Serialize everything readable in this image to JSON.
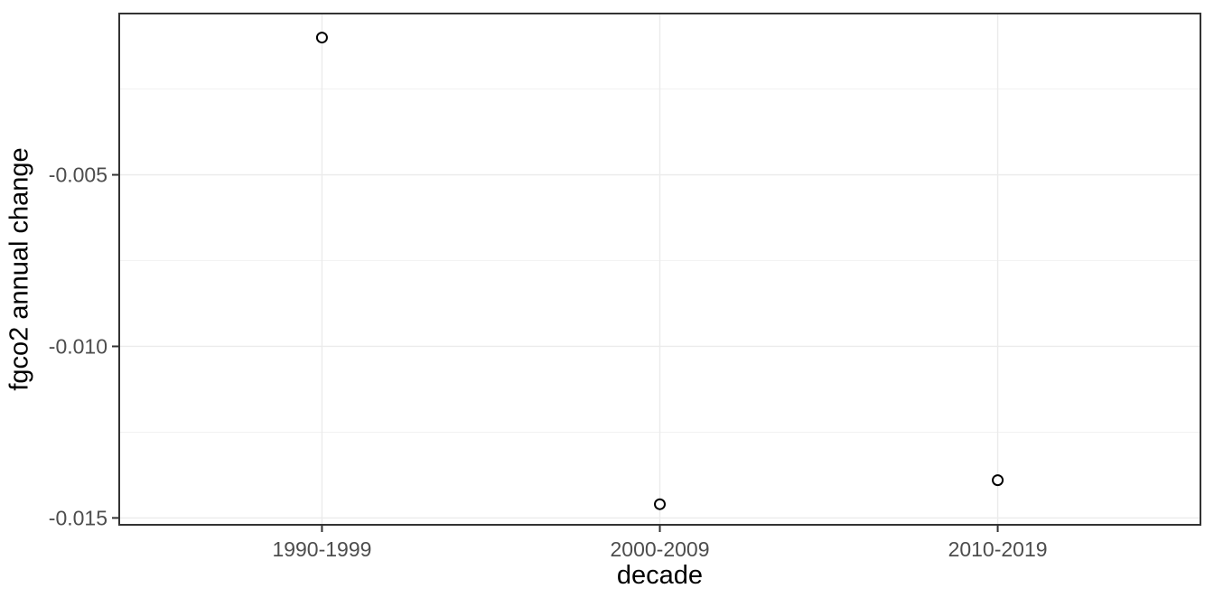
{
  "chart_data": {
    "type": "scatter",
    "title": "",
    "xlabel": "decade",
    "ylabel": "fgco2 annual change",
    "categories": [
      "1990-1999",
      "2000-2009",
      "2010-2019"
    ],
    "values": [
      -0.001,
      -0.0146,
      -0.0139
    ],
    "ylim": [
      -0.0152,
      -0.0003
    ],
    "yticks": [
      -0.005,
      -0.01,
      -0.015
    ],
    "ytick_labels": [
      "-0.005",
      "-0.010",
      "-0.015"
    ],
    "yticks_minor": [
      -0.0025,
      -0.0075,
      -0.0125
    ],
    "grid": "horizontal major+minor, vertical major at categories",
    "legend": "none",
    "point_style": "open-circle",
    "colors": {
      "point_stroke": "#000000",
      "point_fill": "#FFFFFF",
      "grid_major": "#EBEBEB",
      "grid_minor": "#EFEFEF",
      "panel_border": "#333333",
      "tick_mark": "#333333",
      "tick_label": "#4D4D4D",
      "axis_title": "#000000",
      "panel_background": "#FFFFFF",
      "figure_background": "#FFFFFF"
    }
  }
}
